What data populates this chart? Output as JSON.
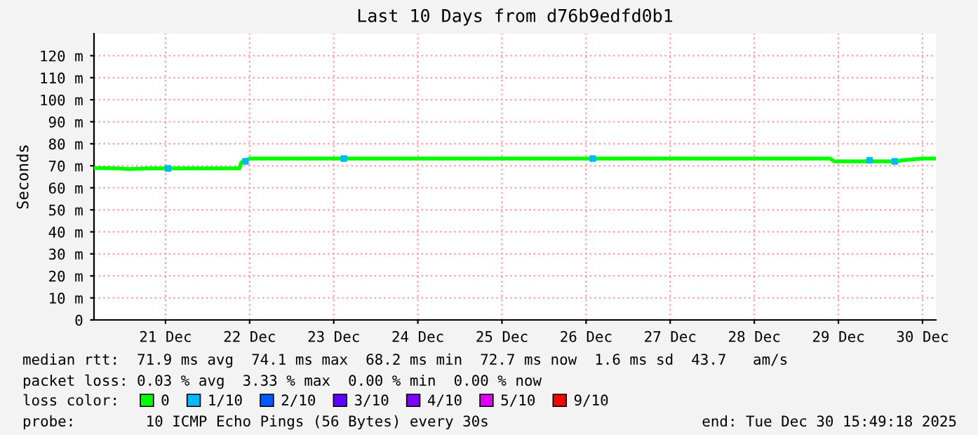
{
  "chart_data": {
    "type": "line",
    "title": "Last 10 Days from d76b9edfd0b1",
    "ylabel": "Seconds",
    "xlim": [
      "2025-12-20T15:36",
      "2025-12-30T15:49"
    ],
    "xticks": [
      {
        "value": "2025-12-21T12:00",
        "label": "21 Dec"
      },
      {
        "value": "2025-12-22T12:00",
        "label": "22 Dec"
      },
      {
        "value": "2025-12-23T12:00",
        "label": "23 Dec"
      },
      {
        "value": "2025-12-24T12:00",
        "label": "24 Dec"
      },
      {
        "value": "2025-12-25T12:00",
        "label": "25 Dec"
      },
      {
        "value": "2025-12-26T12:00",
        "label": "26 Dec"
      },
      {
        "value": "2025-12-27T12:00",
        "label": "27 Dec"
      },
      {
        "value": "2025-12-28T12:00",
        "label": "28 Dec"
      },
      {
        "value": "2025-12-29T12:00",
        "label": "29 Dec"
      },
      {
        "value": "2025-12-30T12:00",
        "label": "30 Dec"
      }
    ],
    "ylim": [
      0,
      130
    ],
    "yticks": [
      0,
      {
        "value": 10,
        "label": "10 m"
      },
      {
        "value": 20,
        "label": "20 m"
      },
      {
        "value": 30,
        "label": "30 m"
      },
      {
        "value": 40,
        "label": "40 m"
      },
      {
        "value": 50,
        "label": "50 m"
      },
      {
        "value": 60,
        "label": "60 m"
      },
      {
        "value": 70,
        "label": "70 m"
      },
      {
        "value": 80,
        "label": "80 m"
      },
      {
        "value": 90,
        "label": "90 m"
      },
      {
        "value": 100,
        "label": "100 m"
      },
      {
        "value": 110,
        "label": "110 m"
      },
      {
        "value": 120,
        "label": "120 m"
      }
    ],
    "grid": true,
    "legend": "bottom",
    "series": [
      {
        "name": "0",
        "color": "#00ff00",
        "x": [
          "2025-12-20T15:36",
          "2025-12-20T22:48",
          "2025-12-21T01:12",
          "2025-12-21T07:12",
          "2025-12-21T19:12",
          "2025-12-22T04:48",
          "2025-12-22T09:07",
          "2025-12-22T09:36",
          "2025-12-22T10:48",
          "2025-12-22T12:00",
          "2025-12-23T12:00",
          "2025-12-24T12:00",
          "2025-12-25T12:00",
          "2025-12-26T12:00",
          "2025-12-27T12:00",
          "2025-12-28T12:00",
          "2025-12-29T09:36",
          "2025-12-29T10:48",
          "2025-12-29T20:53",
          "2025-12-30T04:48",
          "2025-12-30T06:00",
          "2025-12-30T12:00",
          "2025-12-30T15:36"
        ],
        "values": [
          69,
          68.8,
          68.5,
          68.8,
          68.8,
          68.8,
          68.8,
          71.5,
          72.5,
          73.3,
          73.3,
          73.3,
          73.3,
          73.3,
          73.3,
          73.3,
          73.3,
          72,
          72,
          72,
          72.5,
          73.3,
          73.3
        ]
      },
      {
        "name": "1/10",
        "color": "#00b8ff",
        "type": "scatter",
        "x": [
          "2025-12-21T12:43",
          "2025-12-22T10:48",
          "2025-12-23T14:53",
          "2025-12-26T13:55",
          "2025-12-29T20:53",
          "2025-12-30T04:05"
        ],
        "values": [
          68.8,
          72,
          73.3,
          73.3,
          72.5,
          72
        ]
      },
      {
        "name": "2/10",
        "color": "#0059ff",
        "type": "scatter"
      },
      {
        "name": "3/10",
        "color": "#5e00ff",
        "type": "scatter"
      },
      {
        "name": "4/10",
        "color": "#7e00ff",
        "type": "scatter"
      },
      {
        "name": "5/10",
        "color": "#dd00ff",
        "type": "scatter"
      },
      {
        "name": "9/10",
        "color": "#ff0000",
        "type": "scatter"
      }
    ],
    "annotations": [
      "median rtt:  71.9 ms avg  74.1 ms max  68.2 ms min  72.7 ms now  1.6 ms sd  43.7   am/s",
      "packet loss: 0.03 % avg  3.33 % max  0.00 % min  0.00 % now",
      "loss color:",
      "probe:        10 ICMP Echo Pings (56 Bytes) every 30s",
      "end: Tue Dec 30 15:49:18 2025"
    ]
  }
}
